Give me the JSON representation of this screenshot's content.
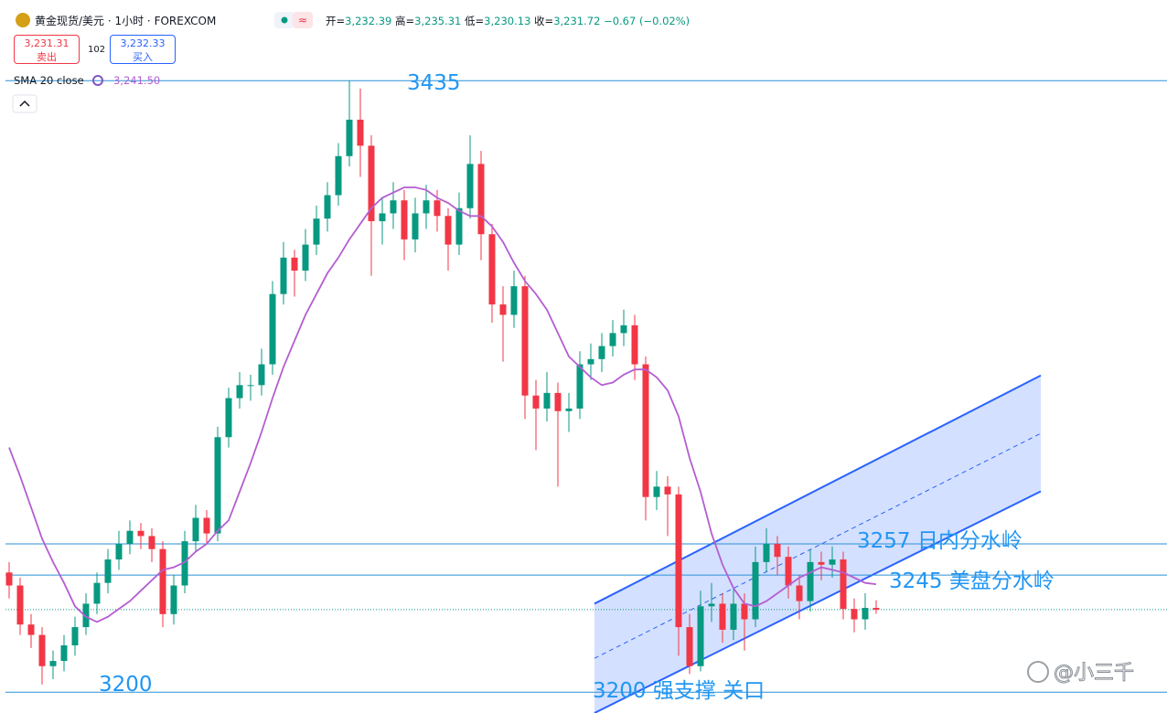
{
  "header": {
    "title": "黄金现货/美元 · 1小时 · FOREXCOM",
    "ohlc": [
      {
        "label": "开=",
        "value": 3232.39,
        "value_label": "3,232.39"
      },
      {
        "label": "高=",
        "value": 3235.31,
        "value_label": "3,235.31"
      },
      {
        "label": "低=",
        "value": 3230.13,
        "value_label": "3,230.13"
      },
      {
        "label": "收=",
        "value": 3231.72,
        "value_label": "3,231.72"
      }
    ],
    "change": {
      "value": -0.67,
      "value_label": "−0.67"
    },
    "change_pct": {
      "value": -0.02,
      "value_label": "(−0.02%)"
    },
    "sell": {
      "value": 3231.31,
      "value_label": "3,231.31",
      "label": "卖出"
    },
    "spread": 102,
    "buy": {
      "value": 3232.33,
      "value_label": "3,232.33",
      "label": "买入"
    },
    "indicator": {
      "label": "SMA 20 close",
      "value": 3241.5,
      "value_label": "3,241.50"
    },
    "watermark": "@小三千"
  },
  "chart_data": {
    "type": "candlestick",
    "xlim": [
      -0.833,
      105.5
    ],
    "ylim": [
      3192,
      3466
    ],
    "up_color": "#089981",
    "down_color": "#f23645",
    "open": [
      3246,
      3241,
      3226,
      3222,
      3210,
      3212,
      3218,
      3225,
      3234,
      3242,
      3251,
      3257,
      3262,
      3260,
      3255,
      3230,
      3241,
      3258,
      3267,
      3261,
      3298,
      3313,
      3318,
      3318,
      3326,
      3353,
      3367,
      3362,
      3372,
      3382,
      3391,
      3406,
      3420,
      3410,
      3381,
      3384,
      3389,
      3374,
      3384,
      3389,
      3383,
      3372,
      3386,
      3403,
      3376,
      3349,
      3345,
      3356,
      3314,
      3309,
      3315,
      3308,
      3309,
      3326,
      3328,
      3333,
      3338,
      3341,
      3326,
      3275,
      3279,
      3276,
      3225,
      3210,
      3233,
      3234,
      3224,
      3234,
      3228,
      3250,
      3257,
      3252,
      3241,
      3235,
      3250,
      3249,
      3251,
      3232,
      3228,
      3232.39
    ],
    "high": [
      3250,
      3244,
      3230,
      3225,
      3216,
      3222,
      3229,
      3238,
      3246,
      3255,
      3262,
      3266,
      3265,
      3263,
      3258,
      3245,
      3262,
      3272,
      3270,
      3302,
      3317,
      3323,
      3322,
      3332,
      3358,
      3373,
      3370,
      3378,
      3387,
      3396,
      3411,
      3435,
      3432,
      3414,
      3390,
      3396,
      3393,
      3390,
      3395,
      3393,
      3386,
      3392,
      3414,
      3408,
      3380,
      3356,
      3362,
      3360,
      3320,
      3323,
      3319,
      3315,
      3331,
      3334,
      3338,
      3343,
      3347,
      3345,
      3329,
      3285,
      3283,
      3279,
      3230,
      3239,
      3242,
      3238,
      3240,
      3238,
      3256,
      3263,
      3260,
      3256,
      3245,
      3255,
      3254,
      3256,
      3254,
      3236,
      3238,
      3235.31
    ],
    "low": [
      3236,
      3222,
      3217,
      3203,
      3205,
      3208,
      3214,
      3222,
      3230,
      3238,
      3247,
      3253,
      3255,
      3250,
      3225,
      3226,
      3238,
      3254,
      3257,
      3258,
      3294,
      3309,
      3312,
      3314,
      3322,
      3349,
      3352,
      3358,
      3368,
      3377,
      3387,
      3402,
      3398,
      3360,
      3372,
      3378,
      3366,
      3369,
      3378,
      3377,
      3362,
      3368,
      3382,
      3366,
      3342,
      3327,
      3340,
      3305,
      3293,
      3304,
      3279,
      3300,
      3305,
      3320,
      3323,
      3329,
      3333,
      3320,
      3266,
      3270,
      3260,
      3214,
      3207,
      3208,
      3227,
      3219,
      3220,
      3216,
      3225,
      3246,
      3245,
      3236,
      3228,
      3231,
      3243,
      3244,
      3228,
      3223,
      3224,
      3230.13
    ],
    "close": [
      3241,
      3226,
      3222,
      3210,
      3212,
      3218,
      3225,
      3234,
      3242,
      3251,
      3257,
      3262,
      3260,
      3255,
      3230,
      3241,
      3258,
      3267,
      3261,
      3298,
      3313,
      3318,
      3318,
      3326,
      3353,
      3367,
      3362,
      3372,
      3382,
      3391,
      3406,
      3420,
      3410,
      3381,
      3384,
      3389,
      3374,
      3384,
      3389,
      3383,
      3372,
      3386,
      3403,
      3376,
      3349,
      3345,
      3356,
      3314,
      3309,
      3315,
      3308,
      3309,
      3326,
      3328,
      3333,
      3338,
      3341,
      3326,
      3275,
      3279,
      3276,
      3225,
      3210,
      3233,
      3234,
      3224,
      3234,
      3228,
      3250,
      3257,
      3252,
      3241,
      3235,
      3250,
      3249,
      3251,
      3232,
      3228,
      3232.39,
      3231.72
    ],
    "sma": {
      "color": "#b45ed1",
      "values": [
        3294,
        3283,
        3271,
        3259,
        3250,
        3242,
        3233,
        3229,
        3227,
        3229,
        3232,
        3235,
        3239,
        3243,
        3247,
        3248,
        3250,
        3254,
        3257,
        3262,
        3266,
        3277,
        3288,
        3300,
        3313,
        3325,
        3335,
        3345,
        3353,
        3361,
        3367,
        3374,
        3380,
        3386,
        3390,
        3392,
        3394,
        3394,
        3393,
        3390,
        3388,
        3385,
        3383,
        3383,
        3379,
        3373,
        3365,
        3358,
        3353,
        3347,
        3338,
        3329,
        3325,
        3321,
        3318,
        3319,
        3322,
        3324,
        3324,
        3321,
        3316,
        3306,
        3290,
        3277,
        3261,
        3249,
        3240,
        3234,
        3233,
        3235,
        3238,
        3241,
        3244,
        3246,
        3248,
        3247,
        3246,
        3244,
        3242,
        3241.5
      ]
    },
    "levels": [
      3435,
      3257,
      3245,
      3200
    ],
    "level_color": "#2a8fd6",
    "channel": {
      "x": [
        53.33,
        94
      ],
      "upper": [
        3234,
        3321.7
      ],
      "lower": [
        3192,
        3277.2
      ],
      "color": "#2962ff"
    },
    "annotations": [
      "3435",
      "3200",
      "3257 日内分水岭",
      "3245 美盘分水岭",
      "3200 强支撑 关口"
    ]
  }
}
